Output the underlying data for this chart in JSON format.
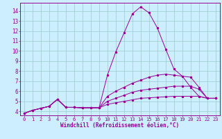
{
  "title": "",
  "xlabel": "Windchill (Refroidissement éolien,°C)",
  "ylabel": "",
  "bg_color": "#cceeff",
  "line_color": "#990099",
  "grid_color": "#99cccc",
  "xlim": [
    -0.5,
    23.5
  ],
  "ylim": [
    3.6,
    14.8
  ],
  "xticks": [
    0,
    1,
    2,
    3,
    4,
    5,
    6,
    7,
    8,
    9,
    10,
    11,
    12,
    13,
    14,
    15,
    16,
    17,
    18,
    19,
    20,
    21,
    22,
    23
  ],
  "yticks": [
    4,
    5,
    6,
    7,
    8,
    9,
    10,
    11,
    12,
    13,
    14
  ],
  "lines": [
    {
      "x": [
        0,
        1,
        2,
        3,
        4,
        5,
        6,
        7,
        8,
        9,
        10,
        11,
        12,
        13,
        14,
        15,
        16,
        17,
        18,
        19,
        20,
        21,
        22,
        23
      ],
      "y": [
        3.8,
        4.1,
        4.3,
        4.5,
        5.2,
        4.4,
        4.4,
        4.35,
        4.35,
        4.35,
        7.6,
        9.9,
        11.8,
        13.7,
        14.4,
        13.8,
        12.3,
        10.2,
        8.2,
        7.5,
        6.4,
        5.5,
        5.3,
        5.3
      ]
    },
    {
      "x": [
        0,
        1,
        2,
        3,
        4,
        5,
        6,
        7,
        8,
        9,
        10,
        11,
        12,
        13,
        14,
        15,
        16,
        17,
        18,
        19,
        20,
        21,
        22,
        23
      ],
      "y": [
        3.8,
        4.1,
        4.3,
        4.5,
        5.2,
        4.4,
        4.4,
        4.35,
        4.35,
        4.35,
        5.5,
        6.0,
        6.4,
        6.8,
        7.1,
        7.4,
        7.6,
        7.7,
        7.6,
        7.5,
        7.4,
        6.4,
        5.3,
        5.3
      ]
    },
    {
      "x": [
        0,
        1,
        2,
        3,
        4,
        5,
        6,
        7,
        8,
        9,
        10,
        11,
        12,
        13,
        14,
        15,
        16,
        17,
        18,
        19,
        20,
        21,
        22,
        23
      ],
      "y": [
        3.8,
        4.1,
        4.3,
        4.5,
        5.2,
        4.4,
        4.4,
        4.35,
        4.35,
        4.35,
        5.0,
        5.3,
        5.6,
        5.9,
        6.1,
        6.2,
        6.3,
        6.4,
        6.5,
        6.5,
        6.5,
        6.2,
        5.3,
        5.3
      ]
    },
    {
      "x": [
        0,
        1,
        2,
        3,
        4,
        5,
        6,
        7,
        8,
        9,
        10,
        11,
        12,
        13,
        14,
        15,
        16,
        17,
        18,
        19,
        20,
        21,
        22,
        23
      ],
      "y": [
        3.8,
        4.1,
        4.3,
        4.5,
        5.2,
        4.4,
        4.4,
        4.35,
        4.35,
        4.35,
        4.7,
        4.85,
        5.0,
        5.15,
        5.3,
        5.35,
        5.4,
        5.45,
        5.5,
        5.5,
        5.5,
        5.5,
        5.3,
        5.3
      ]
    }
  ]
}
